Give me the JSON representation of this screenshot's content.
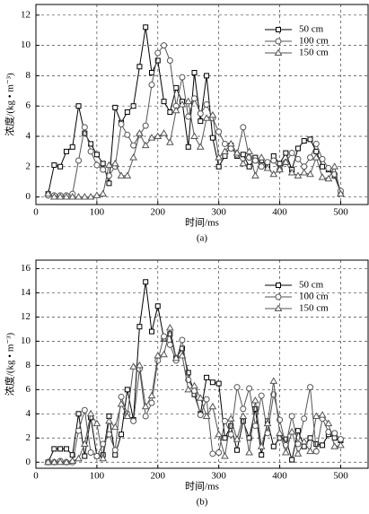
{
  "chart_data": [
    {
      "type": "line",
      "xlabel": "时间/ms",
      "ylabel": "浓度/(kg • m⁻³)",
      "caption": "(a)",
      "xlim": [
        0,
        545
      ],
      "ylim": [
        -0.5,
        12.7
      ],
      "xticks": [
        0,
        100,
        200,
        300,
        400,
        500
      ],
      "yticks": [
        0,
        2,
        4,
        6,
        8,
        10,
        12
      ],
      "grid": true,
      "legend": "upper right",
      "x": [
        20,
        30,
        40,
        50,
        60,
        70,
        80,
        90,
        100,
        110,
        120,
        130,
        140,
        150,
        160,
        170,
        180,
        190,
        200,
        210,
        220,
        230,
        240,
        250,
        260,
        270,
        280,
        290,
        300,
        310,
        320,
        330,
        340,
        350,
        360,
        370,
        380,
        390,
        400,
        410,
        420,
        430,
        440,
        450,
        460,
        470,
        480,
        490,
        500
      ],
      "series": [
        {
          "name": "50 cm",
          "color": "#000000",
          "marker": "square",
          "values": [
            0.2,
            2.1,
            2.0,
            3.0,
            3.3,
            6.0,
            4.2,
            3.5,
            2.8,
            2.2,
            0.9,
            5.9,
            4.9,
            5.6,
            6.0,
            8.6,
            11.2,
            8.2,
            9.0,
            6.3,
            5.6,
            7.2,
            6.3,
            3.3,
            8.2,
            5.0,
            8.0,
            3.9,
            2.0,
            2.7,
            3.4,
            2.7,
            2.8,
            2.0,
            2.6,
            2.4,
            2.0,
            2.7,
            2.2,
            2.9,
            1.8,
            3.2,
            3.7,
            3.8,
            3.0,
            2.0,
            1.8,
            1.4,
            0.3
          ]
        },
        {
          "name": "100 cm",
          "color": "#555555",
          "marker": "circle",
          "values": [
            0.1,
            0.1,
            0.1,
            0.1,
            0.2,
            2.4,
            4.6,
            3.0,
            2.1,
            1.8,
            1.4,
            2.0,
            4.8,
            4.1,
            3.4,
            4.1,
            4.7,
            7.4,
            9.5,
            10.0,
            9.0,
            6.0,
            7.9,
            5.3,
            6.5,
            5.5,
            6.1,
            5.2,
            4.3,
            3.5,
            3.2,
            2.8,
            4.6,
            2.6,
            2.4,
            2.0,
            2.3,
            2.4,
            1.8,
            2.3,
            2.9,
            2.5,
            2.0,
            2.6,
            3.5,
            2.5,
            1.9,
            1.5,
            0.4
          ]
        },
        {
          "name": "150 cm",
          "color": "#555555",
          "marker": "triangle",
          "values": [
            0.2,
            0,
            0,
            0,
            0,
            0,
            0,
            0,
            0.1,
            0.2,
            2.1,
            2.2,
            1.4,
            1.4,
            2.6,
            4.2,
            3.4,
            3.9,
            4.0,
            4.2,
            3.6,
            5.7,
            6.1,
            6.3,
            4.0,
            3.3,
            5.2,
            5.4,
            2.6,
            3.0,
            3.5,
            2.9,
            2.2,
            3.0,
            1.4,
            2.6,
            1.9,
            1.5,
            1.8,
            2.3,
            1.6,
            1.4,
            1.6,
            1.5,
            2.6,
            1.3,
            1.2,
            2.0,
            0.2
          ]
        }
      ]
    },
    {
      "type": "line",
      "xlabel": "时间/ms",
      "ylabel": "浓度/(kg • m⁻³)",
      "caption": "(b)",
      "xlim": [
        0,
        545
      ],
      "ylim": [
        -0.5,
        16.7
      ],
      "xticks": [
        0,
        100,
        200,
        300,
        400,
        500
      ],
      "yticks": [
        0,
        2,
        4,
        6,
        8,
        10,
        12,
        14,
        16
      ],
      "grid": true,
      "legend": "upper right",
      "x": [
        20,
        30,
        40,
        50,
        60,
        70,
        80,
        90,
        100,
        110,
        120,
        130,
        140,
        150,
        160,
        170,
        180,
        190,
        200,
        210,
        220,
        230,
        240,
        250,
        260,
        270,
        280,
        290,
        300,
        310,
        320,
        330,
        340,
        350,
        360,
        370,
        380,
        390,
        400,
        410,
        420,
        430,
        440,
        450,
        460,
        470,
        480,
        490,
        500
      ],
      "series": [
        {
          "name": "50 cm",
          "color": "#000000",
          "marker": "square",
          "values": [
            0,
            1.1,
            1.1,
            1.1,
            0.6,
            4.0,
            0.5,
            3.7,
            0.5,
            0.6,
            3.8,
            0.6,
            2.3,
            6.0,
            3.5,
            11.2,
            14.9,
            10.8,
            12.9,
            10.2,
            10.6,
            8.6,
            9.4,
            7.4,
            5.6,
            4.0,
            7.0,
            6.6,
            6.5,
            2.0,
            3.0,
            1.0,
            3.4,
            2.0,
            4.4,
            0.6,
            3.4,
            1.3,
            2.0,
            1.9,
            0.2,
            2.6,
            1.3,
            2.0,
            1.5,
            1.4,
            2.3,
            2.0,
            1.8
          ]
        },
        {
          "name": "100 cm",
          "color": "#555555",
          "marker": "circle",
          "values": [
            0,
            0,
            0.1,
            0,
            0,
            2.6,
            4.3,
            0.8,
            0.5,
            1.5,
            2.3,
            1.0,
            5.4,
            4.0,
            3.4,
            7.7,
            3.8,
            4.9,
            8.4,
            10.4,
            9.7,
            8.4,
            10.1,
            6.8,
            5.9,
            3.9,
            5.2,
            0.7,
            0.8,
            3.4,
            2.3,
            6.2,
            4.4,
            6.1,
            3.0,
            5.5,
            2.4,
            5.6,
            3.5,
            1.4,
            3.8,
            1.5,
            3.6,
            6.2,
            0.9,
            3.6,
            2.5,
            2.4,
            1.9
          ]
        },
        {
          "name": "150 cm",
          "color": "#555555",
          "marker": "triangle",
          "values": [
            0,
            0,
            0,
            0,
            0.1,
            0.3,
            1.5,
            4.0,
            3.2,
            0.3,
            3.4,
            2.9,
            4.8,
            3.8,
            7.9,
            8.0,
            4.6,
            5.5,
            8.8,
            8.9,
            11.1,
            8.6,
            8.8,
            6.0,
            6.3,
            5.3,
            3.8,
            4.6,
            2.3,
            0.5,
            3.6,
            1.9,
            3.8,
            0.8,
            5.1,
            1.3,
            3.2,
            6.7,
            2.4,
            0.8,
            2.5,
            0.7,
            1.7,
            0.9,
            3.8,
            3.9,
            3.2,
            1.3,
            1.4
          ]
        }
      ]
    }
  ]
}
